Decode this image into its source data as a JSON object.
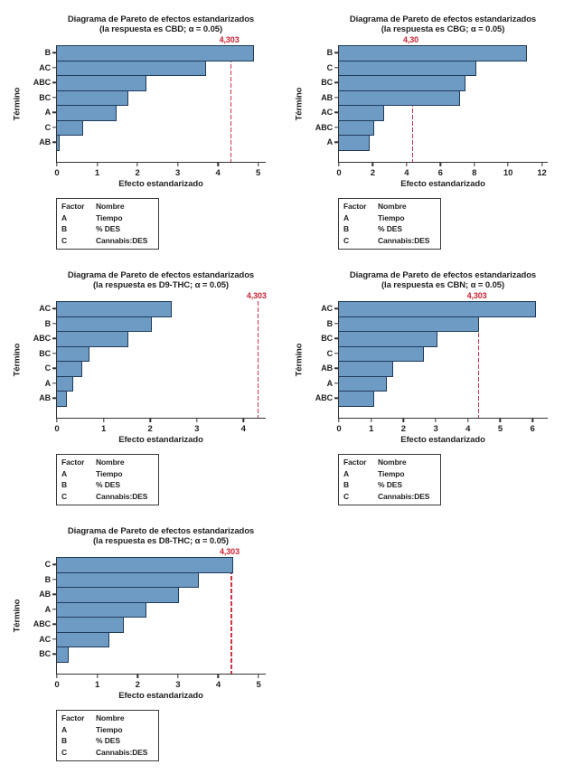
{
  "page": {
    "background": "#ffffff"
  },
  "styles": {
    "bar_fill": "#6D9BC3",
    "bar_border": "#1F3A5C",
    "axis_color": "#333333",
    "text_color": "#1F1F1F",
    "refline_color": "#CC3344",
    "refline_label_color": "#CC2233",
    "legend_border": "#3A3A3A"
  },
  "legend": {
    "headers": [
      "Factor",
      "Nombre"
    ],
    "rows": [
      [
        "A",
        "Tiempo"
      ],
      [
        "B",
        "% DES"
      ],
      [
        "C",
        "Cannabis:DES"
      ]
    ]
  },
  "chart_data": [
    {
      "type": "bar",
      "orientation": "horizontal",
      "title": "Diagrama de Pareto de efectos estandarizados",
      "subtitle": "(la respuesta es CBD; α = 0.05)",
      "response": "CBD",
      "alpha": "0.05",
      "ylabel": "Término",
      "xlabel": "Efecto estandarizado",
      "categories": [
        "B",
        "AC",
        "ABC",
        "BC",
        "A",
        "C",
        "AB"
      ],
      "values": [
        4.89,
        3.71,
        2.22,
        1.78,
        1.49,
        0.66,
        0.07
      ],
      "xticks": [
        0,
        1,
        2,
        3,
        4,
        5
      ],
      "xlim": [
        0,
        5.21
      ],
      "refline": 4.303,
      "refline_label": "4,303",
      "grid": false,
      "legend_position": "below"
    },
    {
      "type": "bar",
      "orientation": "horizontal",
      "title": "Diagrama de Pareto de efectos estandarizados",
      "subtitle": "(la respuesta es CBG; α = 0.05)",
      "response": "CBG",
      "alpha": "0.05",
      "ylabel": "Término",
      "xlabel": "Efecto estandarizado",
      "categories": [
        "B",
        "C",
        "BC",
        "AB",
        "AC",
        "ABC",
        "A"
      ],
      "values": [
        11.1,
        8.1,
        7.5,
        7.17,
        2.66,
        2.09,
        1.83
      ],
      "xticks": [
        0,
        2,
        4,
        6,
        8,
        10,
        12
      ],
      "xlim": [
        0,
        12.4
      ],
      "refline": 4.303,
      "refline_label": "4,30",
      "grid": false,
      "legend_position": "below"
    },
    {
      "type": "bar",
      "orientation": "horizontal",
      "title": "Diagrama de Pareto de efectos estandarizados",
      "subtitle": "(la respuesta es D9-THC; α = 0.05)",
      "response": "D9-THC",
      "alpha": "0.05",
      "ylabel": "Término",
      "xlabel": "Efecto estandarizado",
      "categories": [
        "AC",
        "B",
        "ABC",
        "BC",
        "C",
        "A",
        "AB"
      ],
      "values": [
        2.46,
        2.03,
        1.54,
        0.7,
        0.54,
        0.34,
        0.22
      ],
      "xticks": [
        0,
        1,
        2,
        3,
        4
      ],
      "xlim": [
        0,
        4.5
      ],
      "refline": 4.303,
      "refline_label": "4,303",
      "grid": false,
      "legend_position": "below"
    },
    {
      "type": "bar",
      "orientation": "horizontal",
      "title": "Diagrama de Pareto de efectos estandarizados",
      "subtitle": "(la respuesta es CBN; α = 0.05)",
      "response": "CBN",
      "alpha": "0.05",
      "ylabel": "Término",
      "xlabel": "Efecto estandarizado",
      "categories": [
        "AC",
        "B",
        "BC",
        "C",
        "AB",
        "A",
        "ABC"
      ],
      "values": [
        6.1,
        4.35,
        3.06,
        2.62,
        1.67,
        1.48,
        1.09
      ],
      "xticks": [
        0,
        1,
        2,
        3,
        4,
        5,
        6
      ],
      "xlim": [
        0,
        6.5
      ],
      "refline": 4.303,
      "refline_label": "4,303",
      "grid": false,
      "legend_position": "below"
    },
    {
      "type": "bar",
      "orientation": "horizontal",
      "title": "Diagrama de Pareto de efectos estandarizados",
      "subtitle": "(la respuesta es D8-THC; α = 0.05)",
      "response": "D8-THC",
      "alpha": "0.05",
      "ylabel": "Término",
      "xlabel": "Efecto estandarizado",
      "categories": [
        "C",
        "B",
        "AB",
        "A",
        "ABC",
        "AC",
        "BC"
      ],
      "values": [
        4.37,
        3.53,
        3.02,
        2.22,
        1.66,
        1.29,
        0.29
      ],
      "xticks": [
        0,
        1,
        2,
        3,
        4,
        5
      ],
      "xlim": [
        0,
        5.2
      ],
      "refline": 4.303,
      "refline_label": "4,303",
      "grid": false,
      "legend_position": "below"
    }
  ]
}
